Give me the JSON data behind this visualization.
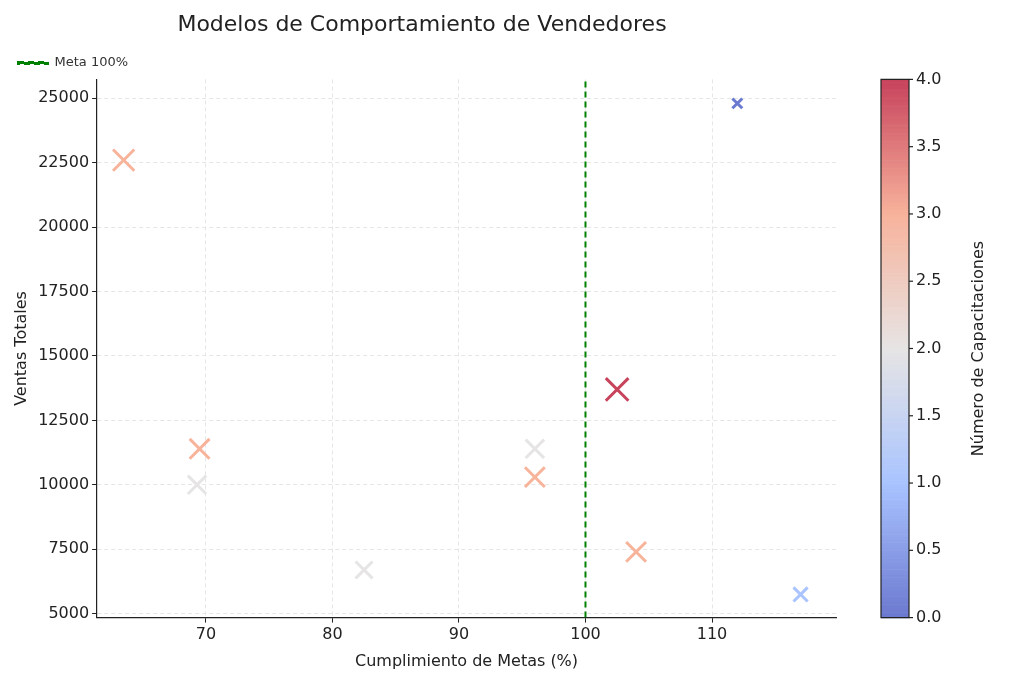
{
  "chart_data": {
    "type": "bubble",
    "title": "Modelos de Comportamiento de Vendedores",
    "xlabel": "Cumplimiento de Metas (%)",
    "ylabel": "Ventas Totales",
    "clabel": "Número de Capacitaciones",
    "x": [
      112,
      63.5,
      102.5,
      96,
      69.5,
      69.3,
      96,
      104,
      82.5,
      117
    ],
    "values": [
      24800,
      22600,
      13700,
      11400,
      11400,
      10000,
      10300,
      7400,
      6700,
      5750
    ],
    "sizes": [
      0.19,
      0.88,
      1,
      0.66,
      0.77,
      0.66,
      0.77,
      0.77,
      0.56,
      0.39
    ],
    "cvalues": [
      0,
      3,
      4,
      2,
      3,
      2,
      3,
      3,
      2,
      1
    ],
    "clim": [
      0,
      4
    ],
    "cticks": [
      {
        "value": 0,
        "label": "0.0"
      },
      {
        "value": 0.5,
        "label": "0.5"
      },
      {
        "value": 1,
        "label": "1.0"
      },
      {
        "value": 1.5,
        "label": "1.5"
      },
      {
        "value": 2,
        "label": "2.0"
      },
      {
        "value": 2.5,
        "label": "2.5"
      },
      {
        "value": 3,
        "label": "3.0"
      },
      {
        "value": 3.5,
        "label": "3.5"
      },
      {
        "value": 4,
        "label": "4.0"
      }
    ],
    "xlim": [
      61.4,
      119.8
    ],
    "xticks": [
      70,
      80,
      90,
      100,
      110
    ],
    "ylim": [
      4850,
      25730
    ],
    "yticks": [
      5000,
      7500,
      10000,
      12500,
      15000,
      17500,
      20000,
      22500,
      25000
    ],
    "ref_lines": [
      {
        "axis": "x",
        "value": 100,
        "label": "Meta 100%",
        "color": "#008000",
        "line_style": "dashed"
      }
    ],
    "marker": "cross",
    "grid": true,
    "legend": "top left"
  }
}
